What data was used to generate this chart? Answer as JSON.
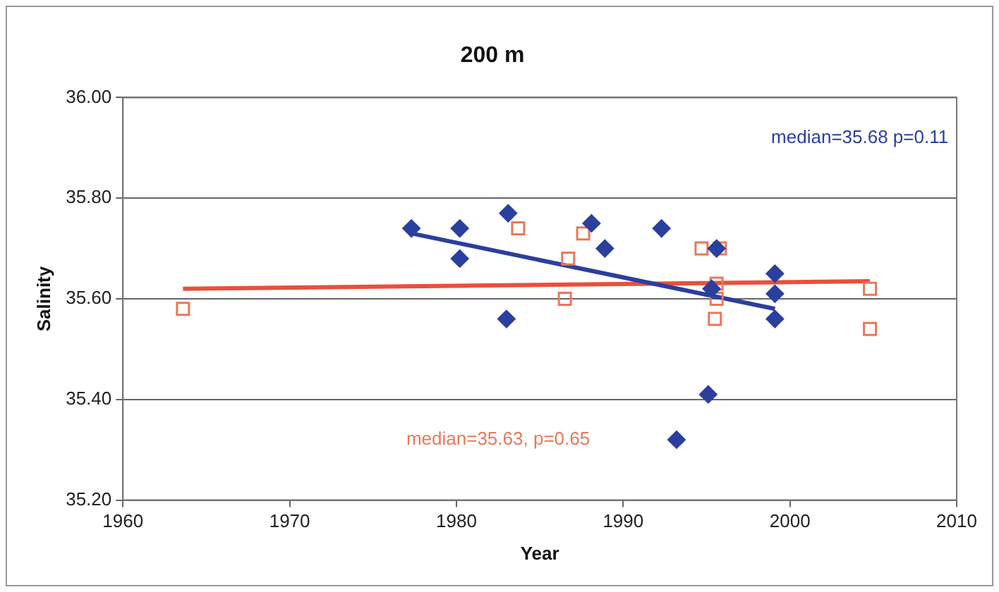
{
  "chart_data": {
    "type": "scatter",
    "title": "200 m",
    "xlabel": "Year",
    "ylabel": "Salinity",
    "xlim": [
      1960,
      2010
    ],
    "xticks": [
      1960,
      1970,
      1980,
      1990,
      2000,
      2010
    ],
    "ylim": [
      35.2,
      36.0
    ],
    "yticks": [
      {
        "value": 35.2,
        "label": "35.20"
      },
      {
        "value": 35.4,
        "label": "35.40"
      },
      {
        "value": 35.6,
        "label": "35.60"
      },
      {
        "value": 35.8,
        "label": "35.80"
      },
      {
        "value": 36.0,
        "label": "36.00"
      }
    ],
    "grid": "y",
    "legend": false,
    "series": [
      {
        "marker": "diamond",
        "color": "#2b3f9e",
        "x": [
          1977.3,
          1980.2,
          1980.2,
          1983.1,
          1983.0,
          1988.1,
          1988.9,
          1992.3,
          1993.2,
          1995.1,
          1995.3,
          1995.6,
          1999.1,
          1999.1,
          1999.1
        ],
        "values": [
          35.74,
          35.74,
          35.68,
          35.77,
          35.56,
          35.75,
          35.7,
          35.74,
          35.32,
          35.41,
          35.62,
          35.7,
          35.65,
          35.61,
          35.56
        ]
      },
      {
        "marker": "square",
        "color": "#e8785a",
        "x": [
          1963.6,
          1983.7,
          1986.5,
          1986.7,
          1987.6,
          1994.7,
          1995.8,
          1995.6,
          1995.6,
          1995.5,
          2004.8,
          2004.8
        ],
        "values": [
          35.58,
          35.74,
          35.6,
          35.68,
          35.73,
          35.7,
          35.7,
          35.63,
          35.6,
          35.56,
          35.62,
          35.54
        ]
      },
      {
        "type": "line",
        "marker": "none",
        "line_style": "solid",
        "color": "#2b3f9e",
        "x": [
          1977.3,
          1999.1
        ],
        "values": [
          35.73,
          35.58
        ]
      },
      {
        "type": "line",
        "marker": "none",
        "line_style": "solid",
        "color": "#e8503c",
        "x": [
          1963.6,
          2004.8
        ],
        "values": [
          35.62,
          35.635
        ]
      }
    ],
    "annotations": [
      "median=35.68 p=0.11",
      "median=35.63, p=0.65"
    ]
  }
}
